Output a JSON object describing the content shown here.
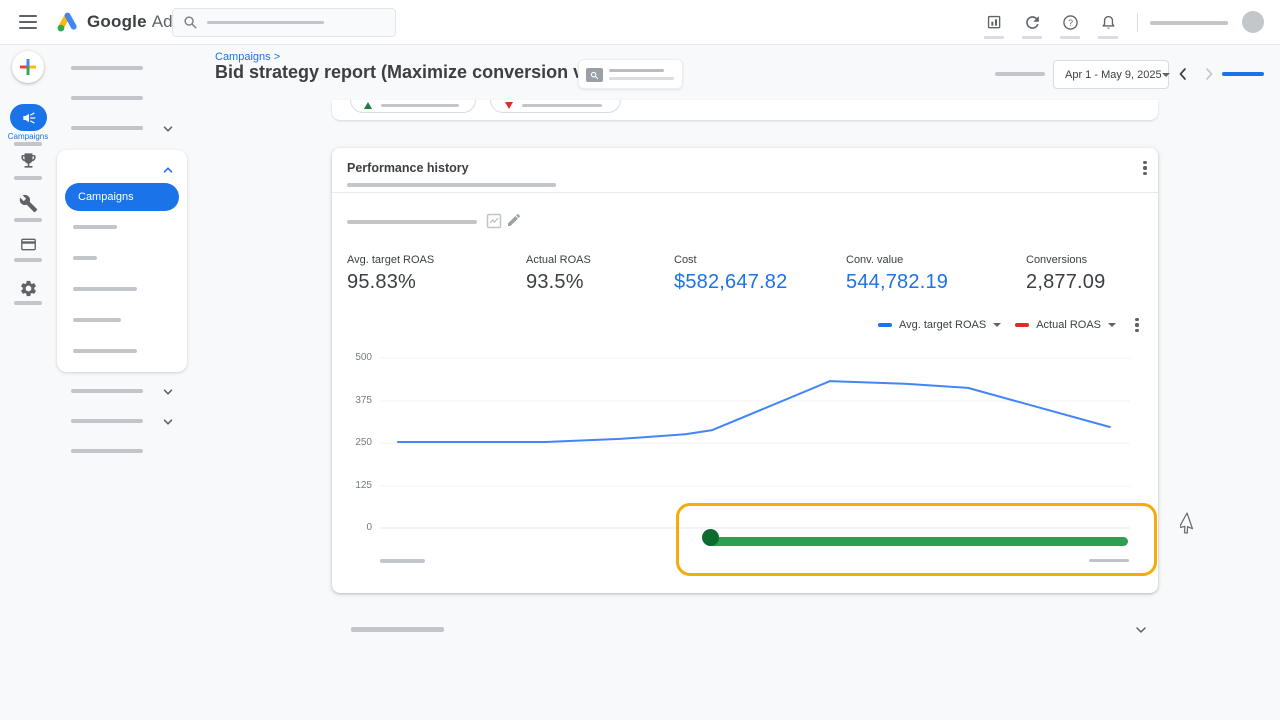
{
  "icons": [
    "hamburger-menu",
    "google-ads-logo",
    "search",
    "reports",
    "refresh",
    "help",
    "notifications",
    "avatar",
    "add-plus",
    "megaphone",
    "trophy",
    "tools-wrench",
    "billing-card",
    "settings-gear",
    "chevron-down",
    "chevron-up",
    "chevron-left",
    "chevron-right",
    "kebab-menu",
    "chart-frame",
    "edit-pencil",
    "arrow-up",
    "arrow-down",
    "mouse-pointer"
  ],
  "colors": {
    "accent_blue": "#1a73e8",
    "chart_line_blue": "#4285f4",
    "legend_red": "#d93025",
    "positive_green": "#188038",
    "negative_red": "#d93025",
    "slider_track_green": "#2f9e4f",
    "slider_handle_green": "#0e6b30",
    "highlight_yellow": "#f4ac0b",
    "text_dark": "#3c4043",
    "text_gray": "#5f6368",
    "page_background": "#f8f9fa"
  },
  "topbar": {
    "logo_primary": "Google",
    "logo_secondary": "Ads"
  },
  "header": {
    "breadcrumb": "Campaigns >",
    "title": "Bid strategy report (Maximize conversion value)",
    "date_range": "Apr 1 - May 9, 2025"
  },
  "sidebar": {
    "rail_active_label": "Campaigns",
    "submenu_active_item": "Campaigns"
  },
  "performance": {
    "title": "Performance history",
    "metrics": [
      {
        "label": "Avg. target ROAS",
        "value": "95.83%",
        "accent": false
      },
      {
        "label": "Actual ROAS",
        "value": "93.5%",
        "accent": false
      },
      {
        "label": "Cost",
        "value": "$582,647.82",
        "accent": true
      },
      {
        "label": "Conv. value",
        "value": "544,782.19",
        "accent": true
      },
      {
        "label": "Conversions",
        "value": "2,877.09",
        "accent": false
      }
    ],
    "legend": [
      {
        "label": "Avg. target ROAS",
        "color": "#1a73e8"
      },
      {
        "label": "Actual ROAS",
        "color": "#d93025"
      }
    ],
    "range_slider": {
      "track_color": "#2f9e4f",
      "handle_color": "#0e6b30",
      "highlight_color": "#f4ac0b"
    }
  },
  "chart_data": {
    "type": "line",
    "title": "Performance history",
    "xlabel": "",
    "ylabel": "",
    "x_range_label": "Apr 1 - May 9, 2025",
    "ylim": [
      0,
      500
    ],
    "y_ticks": [
      500,
      375,
      250,
      125,
      0
    ],
    "grid": true,
    "legend_position": "top-right",
    "series": [
      {
        "name": "Avg. target ROAS",
        "color": "#4285f4",
        "visible": true,
        "points": [
          {
            "x": 0.024,
            "y": 253
          },
          {
            "x": 0.22,
            "y": 253
          },
          {
            "x": 0.32,
            "y": 262
          },
          {
            "x": 0.407,
            "y": 276
          },
          {
            "x": 0.443,
            "y": 288
          },
          {
            "x": 0.6,
            "y": 432
          },
          {
            "x": 0.7,
            "y": 424
          },
          {
            "x": 0.784,
            "y": 412
          },
          {
            "x": 0.973,
            "y": 297
          }
        ]
      },
      {
        "name": "Actual ROAS",
        "color": "#d93025",
        "visible": false,
        "points": []
      }
    ]
  }
}
